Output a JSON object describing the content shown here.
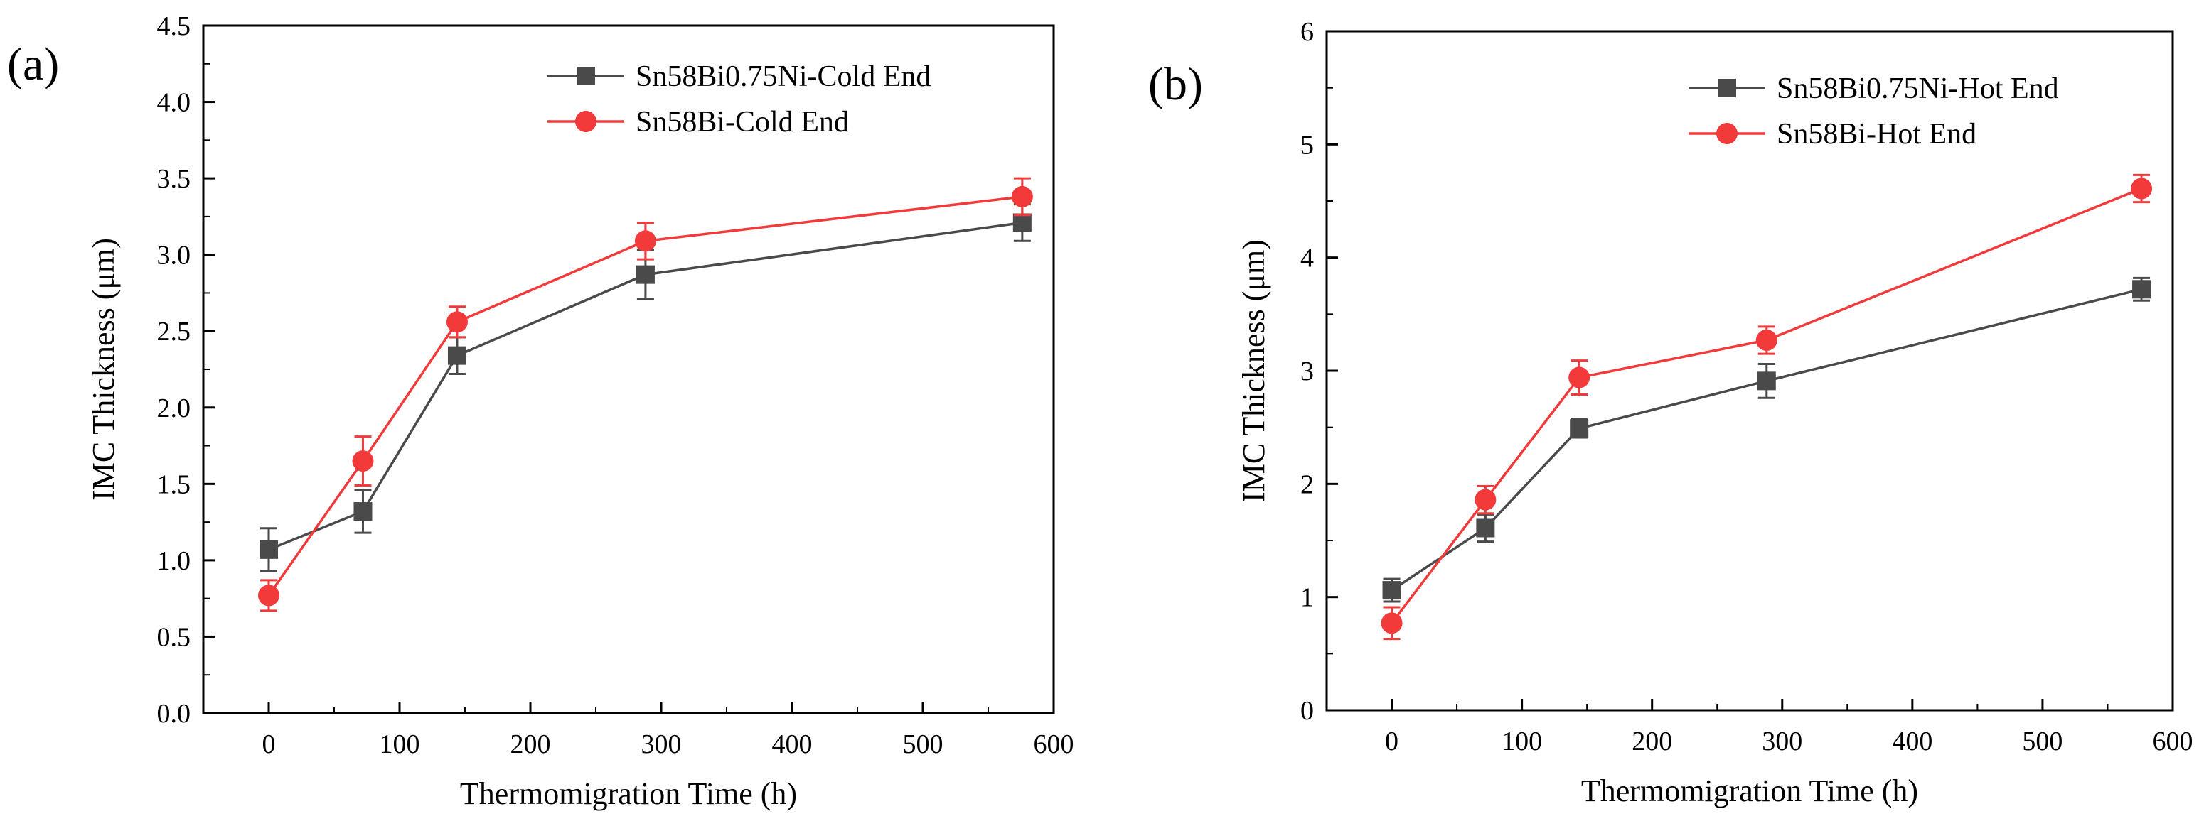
{
  "chart_data": [
    {
      "type": "line",
      "panel_label": "(a)",
      "xlabel": "Thermomigration Time (h)",
      "ylabel": "IMC Thickness (μm)",
      "xlim": [
        -50,
        600
      ],
      "ylim": [
        0,
        4.5
      ],
      "xticks": [
        0,
        100,
        200,
        300,
        400,
        500,
        600
      ],
      "xtick_labels": [
        "0",
        "100",
        "200",
        "300",
        "400",
        "500",
        "600"
      ],
      "yticks": [
        0,
        0.5,
        1,
        1.5,
        2,
        2.5,
        3,
        3.5,
        4,
        4.5
      ],
      "ytick_labels": [
        "0.0",
        "0.5",
        "1.0",
        "1.5",
        "2.0",
        "2.5",
        "3.0",
        "3.5",
        "4.0",
        "4.5"
      ],
      "legend_position": "top-right",
      "series": [
        {
          "name": "Sn58Bi0.75Ni-Cold End",
          "color": "#4a4a4a",
          "marker": "square",
          "x": [
            0,
            72,
            144,
            288,
            576
          ],
          "values": [
            1.07,
            1.32,
            2.34,
            2.87,
            3.21
          ],
          "errors": [
            0.14,
            0.14,
            0.12,
            0.16,
            0.12
          ]
        },
        {
          "name": "Sn58Bi-Cold End",
          "color": "#f23a3a",
          "marker": "circle",
          "x": [
            0,
            72,
            144,
            288,
            576
          ],
          "values": [
            0.77,
            1.65,
            2.56,
            3.09,
            3.38
          ],
          "errors": [
            0.1,
            0.16,
            0.1,
            0.12,
            0.12
          ]
        }
      ]
    },
    {
      "type": "line",
      "panel_label": "(b)",
      "xlabel": "Thermomigration Time (h)",
      "ylabel": "IMC Thickness (μm)",
      "xlim": [
        -50,
        600
      ],
      "ylim": [
        0,
        6
      ],
      "xticks": [
        0,
        100,
        200,
        300,
        400,
        500,
        600
      ],
      "xtick_labels": [
        "0",
        "100",
        "200",
        "300",
        "400",
        "500",
        "600"
      ],
      "yticks": [
        0,
        1,
        2,
        3,
        4,
        5,
        6
      ],
      "ytick_labels": [
        "0",
        "1",
        "2",
        "3",
        "4",
        "5",
        "6"
      ],
      "legend_position": "top-right",
      "series": [
        {
          "name": "Sn58Bi0.75Ni-Hot End",
          "color": "#4a4a4a",
          "marker": "square",
          "x": [
            0,
            72,
            144,
            288,
            576
          ],
          "values": [
            1.06,
            1.61,
            2.49,
            2.91,
            3.72
          ],
          "errors": [
            0.1,
            0.12,
            0.08,
            0.15,
            0.1
          ]
        },
        {
          "name": "Sn58Bi-Hot End",
          "color": "#f23a3a",
          "marker": "circle",
          "x": [
            0,
            72,
            144,
            288,
            576
          ],
          "values": [
            0.77,
            1.86,
            2.94,
            3.27,
            4.61
          ],
          "errors": [
            0.14,
            0.12,
            0.15,
            0.12,
            0.12
          ]
        }
      ]
    }
  ]
}
